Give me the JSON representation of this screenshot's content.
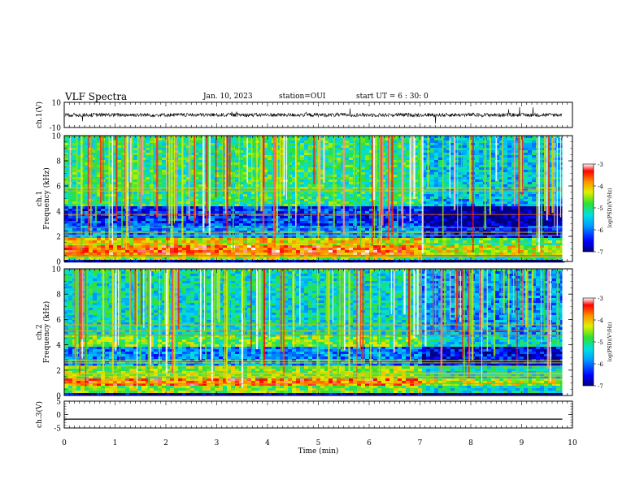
{
  "header": {
    "title": "VLF Spectra",
    "date": "Jan. 10, 2023",
    "station": "station=OUI",
    "start": "start UT =  6 : 30: 0"
  },
  "chart_data": [
    {
      "type": "line",
      "panel": "ch1-waveform",
      "ylabel": "ch.1(V)",
      "ylim": [
        -10,
        10
      ],
      "yticks": [
        "10",
        "-10"
      ],
      "xlim": [
        0,
        10
      ],
      "description_values": {
        "baseline": 0,
        "typical_amplitude": 1.5
      }
    },
    {
      "type": "heatmap",
      "panel": "ch1-spectrogram",
      "ylabel": [
        "ch.1",
        "Frequency (kHz)"
      ],
      "ylim": [
        0,
        10
      ],
      "yticks": [
        "0",
        "2",
        "4",
        "6",
        "8",
        "10"
      ],
      "xlim": [
        0,
        9.8
      ],
      "colorbar": {
        "label": "log(PSD)(V²/Hz)",
        "range": [
          -7,
          -3
        ],
        "ticks": [
          "-3",
          "-4",
          "-5",
          "-6",
          "-7"
        ]
      },
      "bands_kHz": [
        {
          "from": 0.2,
          "to": 0.6,
          "level": -4.5
        },
        {
          "from": 0.6,
          "to": 1.3,
          "level": -3.6
        },
        {
          "from": 1.3,
          "to": 2.0,
          "level": -4.2
        },
        {
          "from": 2.0,
          "to": 3.0,
          "level": -5.8
        },
        {
          "from": 3.0,
          "to": 4.4,
          "level": -6.3
        },
        {
          "from": 4.4,
          "to": 5.0,
          "level": -5.0
        },
        {
          "from": 5.0,
          "to": 10.0,
          "level": -5.0
        }
      ],
      "change_time_min": 7.0
    },
    {
      "type": "heatmap",
      "panel": "ch2-spectrogram",
      "ylabel": [
        "ch.2",
        "Frequency (kHz)"
      ],
      "ylim": [
        0,
        10
      ],
      "yticks": [
        "0",
        "2",
        "4",
        "6",
        "8",
        "10"
      ],
      "xlim": [
        0,
        9.8
      ],
      "colorbar": {
        "label": "log(PSD)(V²/Hz)",
        "range": [
          -7,
          -3
        ],
        "ticks": [
          "-3",
          "-4",
          "-5",
          "-6",
          "-7"
        ]
      },
      "bands_kHz": [
        {
          "from": 0.2,
          "to": 0.8,
          "level": -4.6
        },
        {
          "from": 0.8,
          "to": 1.5,
          "level": -3.7
        },
        {
          "from": 1.5,
          "to": 2.5,
          "level": -4.6
        },
        {
          "from": 2.5,
          "to": 4.0,
          "level": -5.9
        },
        {
          "from": 4.0,
          "to": 5.0,
          "level": -4.7
        },
        {
          "from": 5.0,
          "to": 10.0,
          "level": -5.3
        }
      ],
      "change_time_min": 7.0
    },
    {
      "type": "line",
      "panel": "ch3-waveform",
      "ylabel": "ch.3(V)",
      "ylim": [
        -5,
        5
      ],
      "yticks": [
        "5",
        "0",
        "-5"
      ],
      "x": [
        0,
        9.8
      ],
      "y": [
        -1.7,
        -1.7
      ],
      "xlabel": "Time (min)",
      "xticks": [
        "0",
        "1",
        "2",
        "3",
        "4",
        "5",
        "6",
        "7",
        "8",
        "9",
        "10"
      ],
      "xlim": [
        0,
        10
      ]
    }
  ]
}
